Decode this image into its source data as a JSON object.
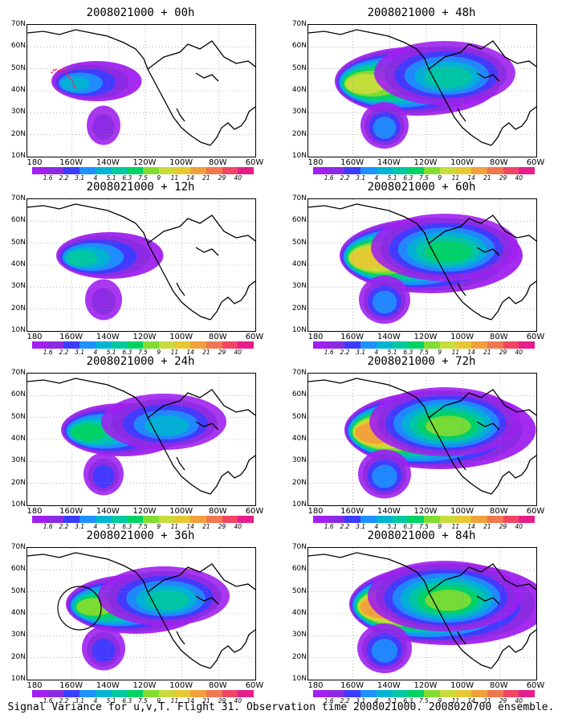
{
  "panels": [
    {
      "title": "2008021000 + 00h",
      "intensity": 0.25,
      "flight_track": true,
      "circle": false
    },
    {
      "title": "2008021000 + 48h",
      "intensity": 0.7,
      "flight_track": false,
      "circle": false
    },
    {
      "title": "2008021000 + 12h",
      "intensity": 0.35,
      "flight_track": false,
      "circle": false
    },
    {
      "title": "2008021000 + 60h",
      "intensity": 0.8,
      "flight_track": false,
      "circle": false
    },
    {
      "title": "2008021000 + 24h",
      "intensity": 0.45,
      "flight_track": false,
      "circle": false
    },
    {
      "title": "2008021000 + 72h",
      "intensity": 0.85,
      "flight_track": false,
      "circle": false
    },
    {
      "title": "2008021000 + 36h",
      "intensity": 0.55,
      "flight_track": false,
      "circle": true
    },
    {
      "title": "2008021000 + 84h",
      "intensity": 0.9,
      "flight_track": false,
      "circle": false
    }
  ],
  "lat_labels": [
    "70N",
    "60N",
    "50N",
    "40N",
    "30N",
    "20N",
    "10N"
  ],
  "lon_labels": [
    "180",
    "160W",
    "140W",
    "120W",
    "100W",
    "80W",
    "60W"
  ],
  "colorbar": {
    "labels": [
      "1.6",
      "2.2",
      "3.1",
      "4",
      "5.1",
      "6.3",
      "7.5",
      "9",
      "11",
      "14",
      "21",
      "29",
      "40"
    ],
    "colors": [
      "#a020f0",
      "#8a2be2",
      "#3c3cff",
      "#1e90ff",
      "#00b4d2",
      "#00c8a0",
      "#00d264",
      "#82dc32",
      "#c8dc3c",
      "#e6c832",
      "#f0a03c",
      "#f07850",
      "#f04664",
      "#e61e8c"
    ]
  },
  "caption": "Signal Variance for u,v,T. Flight 31. Observation time 2008021000. 2008020700 ensemble."
}
